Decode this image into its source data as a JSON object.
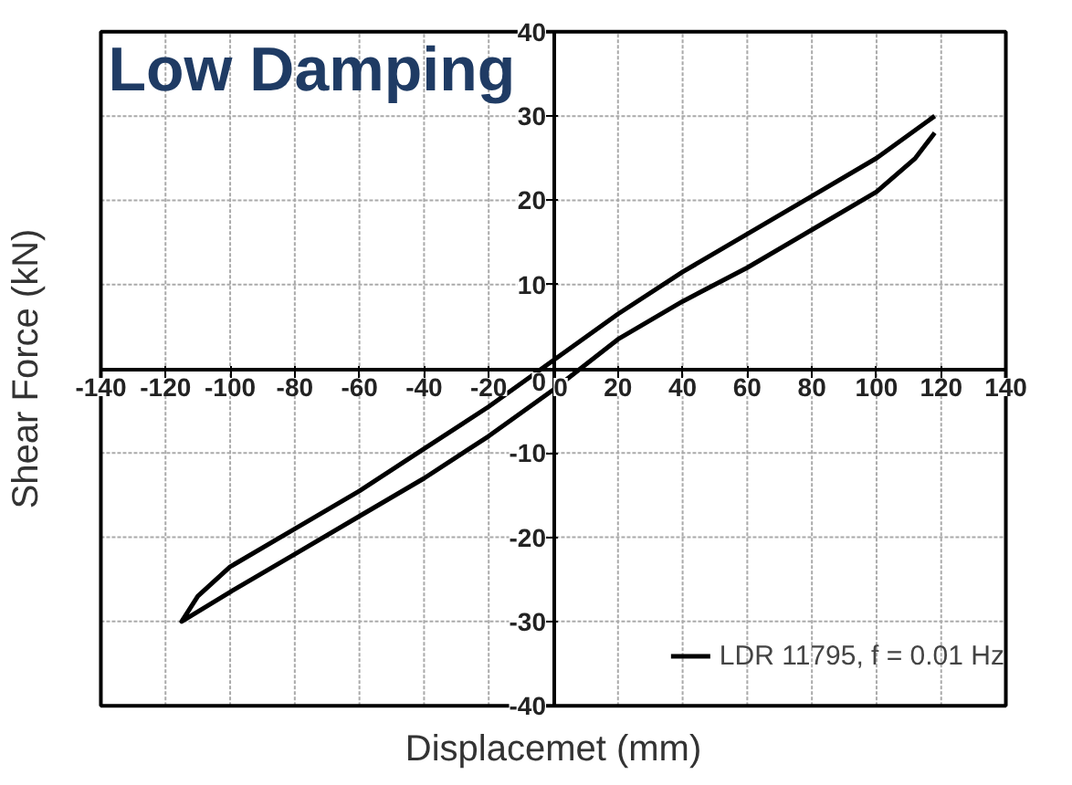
{
  "chart_data": {
    "type": "line",
    "title": "Low Damping",
    "xlabel": "Displacemet (mm)",
    "ylabel": "Shear Force (kN)",
    "series": [
      {
        "name": "LDR 11795, f = 0.01 Hz",
        "color": "#000000",
        "x": [
          118,
          100,
          80,
          60,
          40,
          20,
          0,
          -20,
          -40,
          -60,
          -80,
          -100,
          -110,
          -115,
          -100,
          -80,
          -60,
          -40,
          -20,
          0,
          20,
          40,
          60,
          80,
          100,
          112,
          118
        ],
        "values": [
          30,
          25,
          20.5,
          16,
          11.5,
          6.5,
          1,
          -4.5,
          -9.5,
          -14.5,
          -19,
          -23.5,
          -27,
          -30,
          -26.5,
          -22,
          -17.5,
          -13,
          -8,
          -2.5,
          3.5,
          8,
          12,
          16.5,
          21,
          25,
          28
        ]
      }
    ],
    "xlim": [
      -140,
      140
    ],
    "ylim": [
      -40,
      40
    ],
    "xticks": [
      -140,
      -120,
      -100,
      -80,
      -60,
      -40,
      -20,
      0,
      20,
      40,
      60,
      80,
      100,
      120,
      140
    ],
    "yticks": [
      -40,
      -30,
      -20,
      -10,
      0,
      10,
      20,
      30,
      40
    ],
    "grid": true,
    "legend": "bottom right",
    "marker": "none",
    "line_style": "solid"
  }
}
